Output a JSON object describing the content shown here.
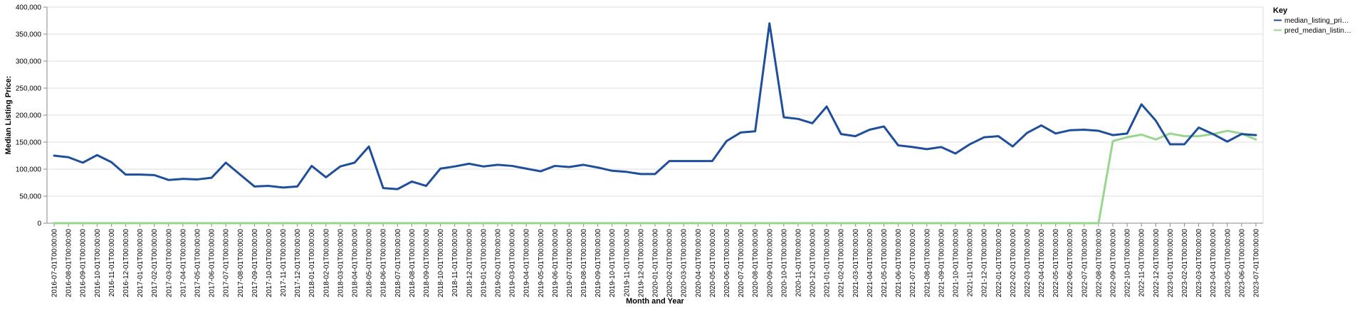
{
  "chart_data": {
    "type": "line",
    "title": "",
    "xlabel": "Month and Year",
    "ylabel": "Median Listing Price:",
    "ylim": [
      0,
      400000
    ],
    "yticks": [
      0,
      50000,
      100000,
      150000,
      200000,
      250000,
      300000,
      350000,
      400000
    ],
    "ytick_labels": [
      "0",
      "50,000",
      "100,000",
      "150,000",
      "200,000",
      "250,000",
      "300,000",
      "350,000",
      "400,000"
    ],
    "grid": true,
    "legend": {
      "title": "Key",
      "placement": "top-right",
      "entries": [
        "median_listing_pri…",
        "pred_median_listin…"
      ]
    },
    "x": [
      "2016-07-01T00:00:00",
      "2016-08-01T00:00:00",
      "2016-09-01T00:00:00",
      "2016-10-01T00:00:00",
      "2016-11-01T00:00:00",
      "2016-12-01T00:00:00",
      "2017-01-01T00:00:00",
      "2017-02-01T00:00:00",
      "2017-03-01T00:00:00",
      "2017-04-01T00:00:00",
      "2017-05-01T00:00:00",
      "2017-06-01T00:00:00",
      "2017-07-01T00:00:00",
      "2017-08-01T00:00:00",
      "2017-09-01T00:00:00",
      "2017-10-01T00:00:00",
      "2017-11-01T00:00:00",
      "2017-12-01T00:00:00",
      "2018-01-01T00:00:00",
      "2018-02-01T00:00:00",
      "2018-03-01T00:00:00",
      "2018-04-01T00:00:00",
      "2018-05-01T00:00:00",
      "2018-06-01T00:00:00",
      "2018-07-01T00:00:00",
      "2018-08-01T00:00:00",
      "2018-09-01T00:00:00",
      "2018-10-01T00:00:00",
      "2018-11-01T00:00:00",
      "2018-12-01T00:00:00",
      "2019-01-01T00:00:00",
      "2019-02-01T00:00:00",
      "2019-03-01T00:00:00",
      "2019-04-01T00:00:00",
      "2019-05-01T00:00:00",
      "2019-06-01T00:00:00",
      "2019-07-01T00:00:00",
      "2019-08-01T00:00:00",
      "2019-09-01T00:00:00",
      "2019-10-01T00:00:00",
      "2019-11-01T00:00:00",
      "2019-12-01T00:00:00",
      "2020-01-01T00:00:00",
      "2020-02-01T00:00:00",
      "2020-03-01T00:00:00",
      "2020-04-01T00:00:00",
      "2020-05-01T00:00:00",
      "2020-06-01T00:00:00",
      "2020-07-01T00:00:00",
      "2020-08-01T00:00:00",
      "2020-09-01T00:00:00",
      "2020-10-01T00:00:00",
      "2020-11-01T00:00:00",
      "2020-12-01T00:00:00",
      "2021-01-01T00:00:00",
      "2021-02-01T00:00:00",
      "2021-03-01T00:00:00",
      "2021-04-01T00:00:00",
      "2021-05-01T00:00:00",
      "2021-06-01T00:00:00",
      "2021-07-01T00:00:00",
      "2021-08-01T00:00:00",
      "2021-09-01T00:00:00",
      "2021-10-01T00:00:00",
      "2021-11-01T00:00:00",
      "2021-12-01T00:00:00",
      "2022-01-01T00:00:00",
      "2022-02-01T00:00:00",
      "2022-03-01T00:00:00",
      "2022-04-01T00:00:00",
      "2022-05-01T00:00:00",
      "2022-06-01T00:00:00",
      "2022-07-01T00:00:00",
      "2022-08-01T00:00:00",
      "2022-09-01T00:00:00",
      "2022-10-01T00:00:00",
      "2022-11-01T00:00:00",
      "2022-12-01T00:00:00",
      "2023-01-01T00:00:00",
      "2023-02-01T00:00:00",
      "2023-03-01T00:00:00",
      "2023-04-01T00:00:00",
      "2023-05-01T00:00:00",
      "2023-06-01T00:00:00",
      "2023-07-01T00:00:00"
    ],
    "series": [
      {
        "name": "median_listing_pri…",
        "color": "#1f4e9a",
        "values": [
          125000,
          122000,
          112000,
          126000,
          113000,
          90000,
          90000,
          89000,
          80000,
          82000,
          81000,
          84000,
          112000,
          90000,
          68000,
          69000,
          66000,
          68000,
          106000,
          85000,
          105000,
          112000,
          142000,
          65000,
          63000,
          77000,
          69000,
          101000,
          105000,
          110000,
          105000,
          108000,
          106000,
          101000,
          96000,
          106000,
          104000,
          108000,
          103000,
          97000,
          95000,
          91000,
          91000,
          115000,
          115000,
          115000,
          115000,
          152000,
          168000,
          170000,
          370000,
          196000,
          193000,
          185000,
          216000,
          165000,
          161000,
          173000,
          179000,
          144000,
          141000,
          137000,
          141000,
          129000,
          146000,
          159000,
          161000,
          142000,
          167000,
          181000,
          166000,
          172000,
          173000,
          171000,
          163000,
          166000,
          220000,
          190000,
          146000,
          146000,
          177000,
          165000,
          151000,
          165000,
          163000
        ]
      },
      {
        "name": "pred_median_listin…",
        "color": "#98d68e",
        "values": [
          0,
          0,
          0,
          0,
          0,
          0,
          0,
          0,
          0,
          0,
          0,
          0,
          0,
          0,
          0,
          0,
          0,
          0,
          0,
          0,
          0,
          0,
          0,
          0,
          0,
          0,
          0,
          0,
          0,
          0,
          0,
          0,
          0,
          0,
          0,
          0,
          0,
          0,
          0,
          0,
          0,
          0,
          0,
          0,
          0,
          0,
          0,
          0,
          0,
          0,
          0,
          0,
          0,
          0,
          0,
          0,
          0,
          0,
          0,
          0,
          0,
          0,
          0,
          0,
          0,
          0,
          0,
          0,
          0,
          0,
          0,
          0,
          0,
          0,
          152000,
          159000,
          164000,
          155000,
          166000,
          161000,
          161000,
          165000,
          171000,
          166000,
          155000
        ]
      }
    ]
  }
}
